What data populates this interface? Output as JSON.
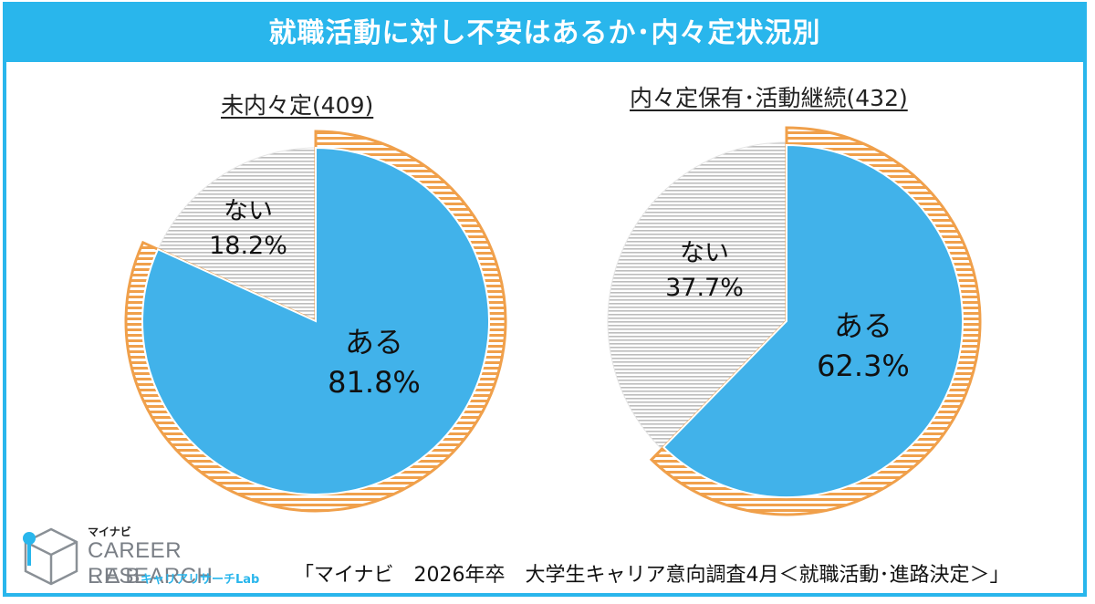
{
  "banner": {
    "title": "就職活動に対し不安はあるか･内々定状況別"
  },
  "colors": {
    "accent": "#29B6EC",
    "aru": "#41B2EA",
    "orange": "#F0A04B",
    "gray_hatch": "#BBBBBB"
  },
  "chart_data": [
    {
      "type": "pie",
      "title": "未内々定(409)",
      "slices": [
        {
          "label": "ある",
          "value": 81.8,
          "display": "81.8%"
        },
        {
          "label": "ない",
          "value": 18.2,
          "display": "18.2%"
        }
      ],
      "highlight_ring": "ある"
    },
    {
      "type": "pie",
      "title": "内々定保有･活動継続(432)",
      "slices": [
        {
          "label": "ある",
          "value": 62.3,
          "display": "62.3%"
        },
        {
          "label": "ない",
          "value": 37.7,
          "display": "37.7%"
        }
      ],
      "highlight_ring": "ある"
    }
  ],
  "footer": {
    "source": "「マイナビ　2026年卒　大学生キャリア意向調査4月＜就職活動･進路決定＞」"
  },
  "logo": {
    "mynavi": "マイナビ",
    "career": "CAREER RESEARCH",
    "lab": "LAB",
    "sub": "キャリアリサーチLab"
  }
}
